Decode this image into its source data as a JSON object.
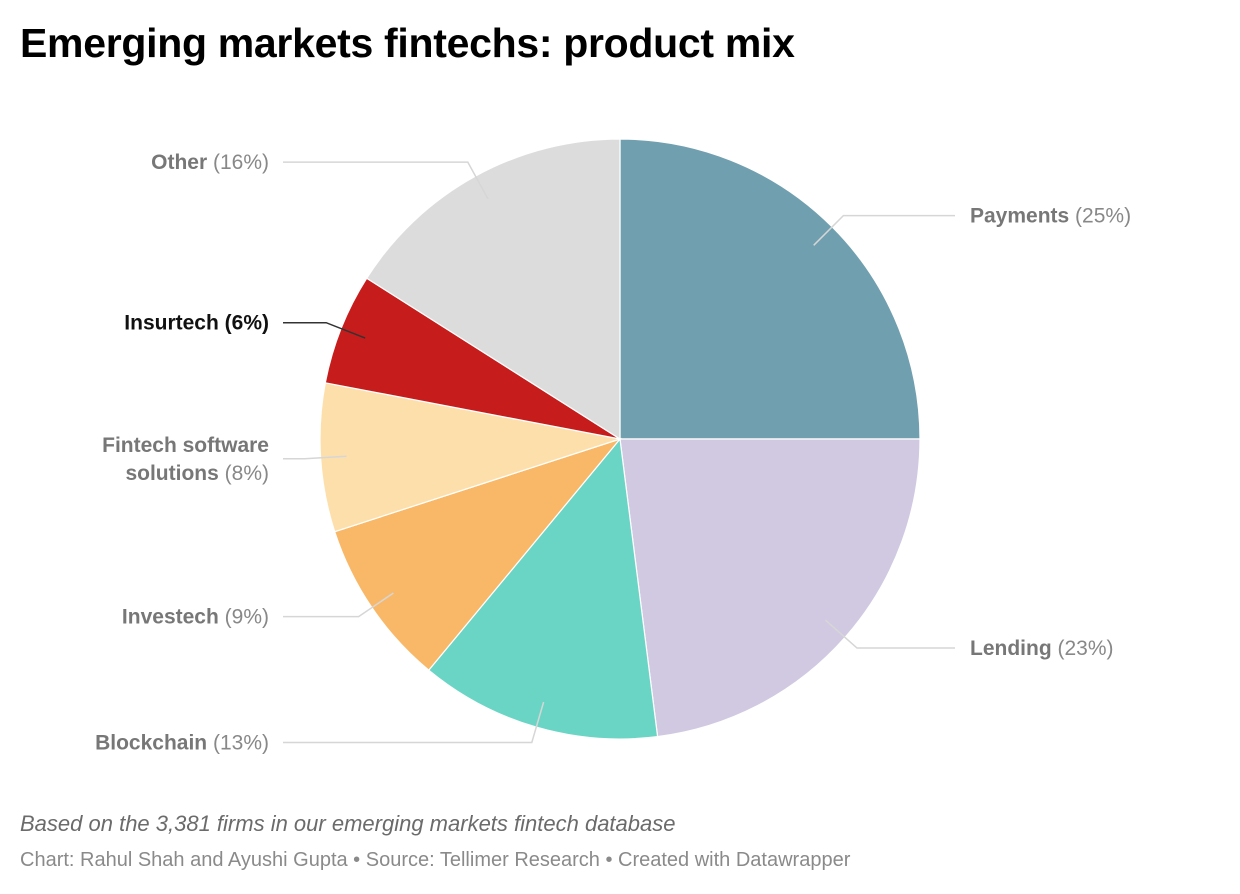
{
  "title": "Emerging markets fintechs: product mix",
  "chart_data": {
    "type": "pie",
    "title": "Emerging markets fintechs: product mix",
    "unit": "%",
    "slices": [
      {
        "label": "Payments",
        "value": 25,
        "color": "#709faf"
      },
      {
        "label": "Lending",
        "value": 23,
        "color": "#d1c9e1"
      },
      {
        "label": "Blockchain",
        "value": 13,
        "color": "#6bd5c5"
      },
      {
        "label": "Investech",
        "value": 9,
        "color": "#f9b868"
      },
      {
        "label": "Fintech software solutions",
        "value": 8,
        "color": "#fddfab"
      },
      {
        "label": "Insurtech",
        "value": 6,
        "color": "#c71c1c",
        "highlighted": true
      },
      {
        "label": "Other",
        "value": 16,
        "color": "#dcdcdc"
      }
    ]
  },
  "footer": {
    "note": "Based on the 3,381 firms in our emerging markets fintech database",
    "credits": "Chart: Rahul Shah and Ayushi Gupta • Source: Tellimer Research • Created with Datawrapper"
  }
}
